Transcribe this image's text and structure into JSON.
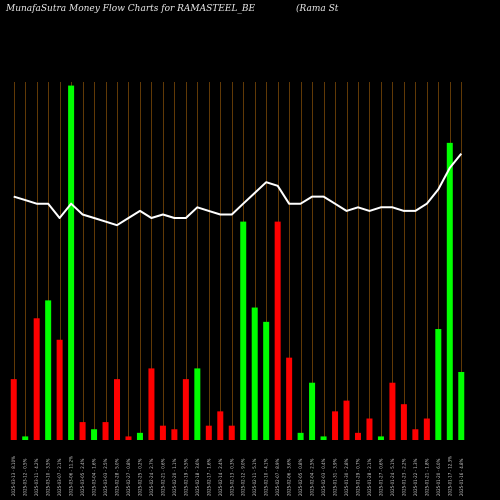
{
  "header": {
    "title": "MunafaSutra  Money Flow  Charts for RAMASTEEL_BE",
    "title_right": "(Rama  St"
  },
  "colors": {
    "background": "#000000",
    "up": "#00ff00",
    "down": "#ff0000",
    "grid": "#a0600a",
    "line": "#ffffff"
  },
  "chart_data": {
    "type": "bar",
    "title": "MunafaSutra  Money Flow  Charts for RAMASTEEL_BE",
    "grid": true,
    "bar_ylim": [
      0,
      100
    ],
    "line_ylim": [
      0,
      100
    ],
    "categories": [
      "2025-03-13 - 8.10%",
      "2025-03-12 - 0.5%",
      "2025-03-11 - 4.2%",
      "2025-03-10 - 3.5%",
      "2025-03-07 - 2.1%",
      "2025-03-06 - 11.2%",
      "2025-03-05 - 2.4%",
      "2025-03-04 - 1.6%",
      "2025-03-03 - 2.5%",
      "2025-02-28 - 5.0%",
      "2025-02-27 - 0.8%",
      "2025-02-25 - 0.2%",
      "2025-02-24 - 2.7%",
      "2025-02-21 - 0.6%",
      "2025-02-20 - 1.1%",
      "2025-02-19 - 5.5%",
      "2025-02-18 - 3.6%",
      "2025-02-17 - 1.6%",
      "2025-02-14 - 2.4%",
      "2025-02-13 - 0.3%",
      "2025-02-12 - 9.0%",
      "2025-02-11 - 5.1%",
      "2025-02-10 - 4.1%",
      "2025-02-07 - 8.9%",
      "2025-02-06 - 3.6%",
      "2025-02-05 - 0.8%",
      "2025-02-04 - 2.5%",
      "2025-02-03 - 0.4%",
      "2025-01-31 - 3.9%",
      "2025-01-30 - 2.8%",
      "2025-01-29 - 0.7%",
      "2025-01-28 - 2.1%",
      "2025-01-27 - 0.6%",
      "2025-01-24 - 5.1%",
      "2025-01-23 - 2.2%",
      "2025-01-22 - 1.3%",
      "2025-01-21 - 1.8%",
      "2025-01-20 - 6.0%",
      "2025-01-17 - 12.3%",
      "2025-01-16 - 4.8%"
    ],
    "series": [
      {
        "type": "bar",
        "values": [
          17,
          1,
          34,
          39,
          28,
          99,
          5,
          3,
          5,
          17,
          1,
          2,
          20,
          4,
          3,
          17,
          20,
          4,
          8,
          4,
          61,
          37,
          33,
          61,
          23,
          2,
          16,
          1,
          8,
          11,
          2,
          6,
          1,
          16,
          10,
          3,
          6,
          31,
          83,
          19
        ],
        "colors": [
          "down",
          "up",
          "down",
          "up",
          "down",
          "up",
          "down",
          "up",
          "down",
          "down",
          "down",
          "up",
          "down",
          "down",
          "down",
          "down",
          "up",
          "down",
          "down",
          "down",
          "up",
          "up",
          "up",
          "down",
          "down",
          "up",
          "up",
          "up",
          "down",
          "down",
          "down",
          "down",
          "up",
          "down",
          "down",
          "down",
          "down",
          "up",
          "up",
          "up"
        ]
      },
      {
        "type": "line",
        "values": [
          68,
          67,
          66,
          66,
          62,
          66,
          63,
          62,
          61,
          60,
          62,
          64,
          62,
          63,
          62,
          62,
          65,
          64,
          63,
          63,
          66,
          69,
          72,
          71,
          66,
          66,
          68,
          68,
          66,
          64,
          65,
          64,
          65,
          65,
          64,
          64,
          66,
          70,
          76,
          80
        ]
      }
    ]
  }
}
